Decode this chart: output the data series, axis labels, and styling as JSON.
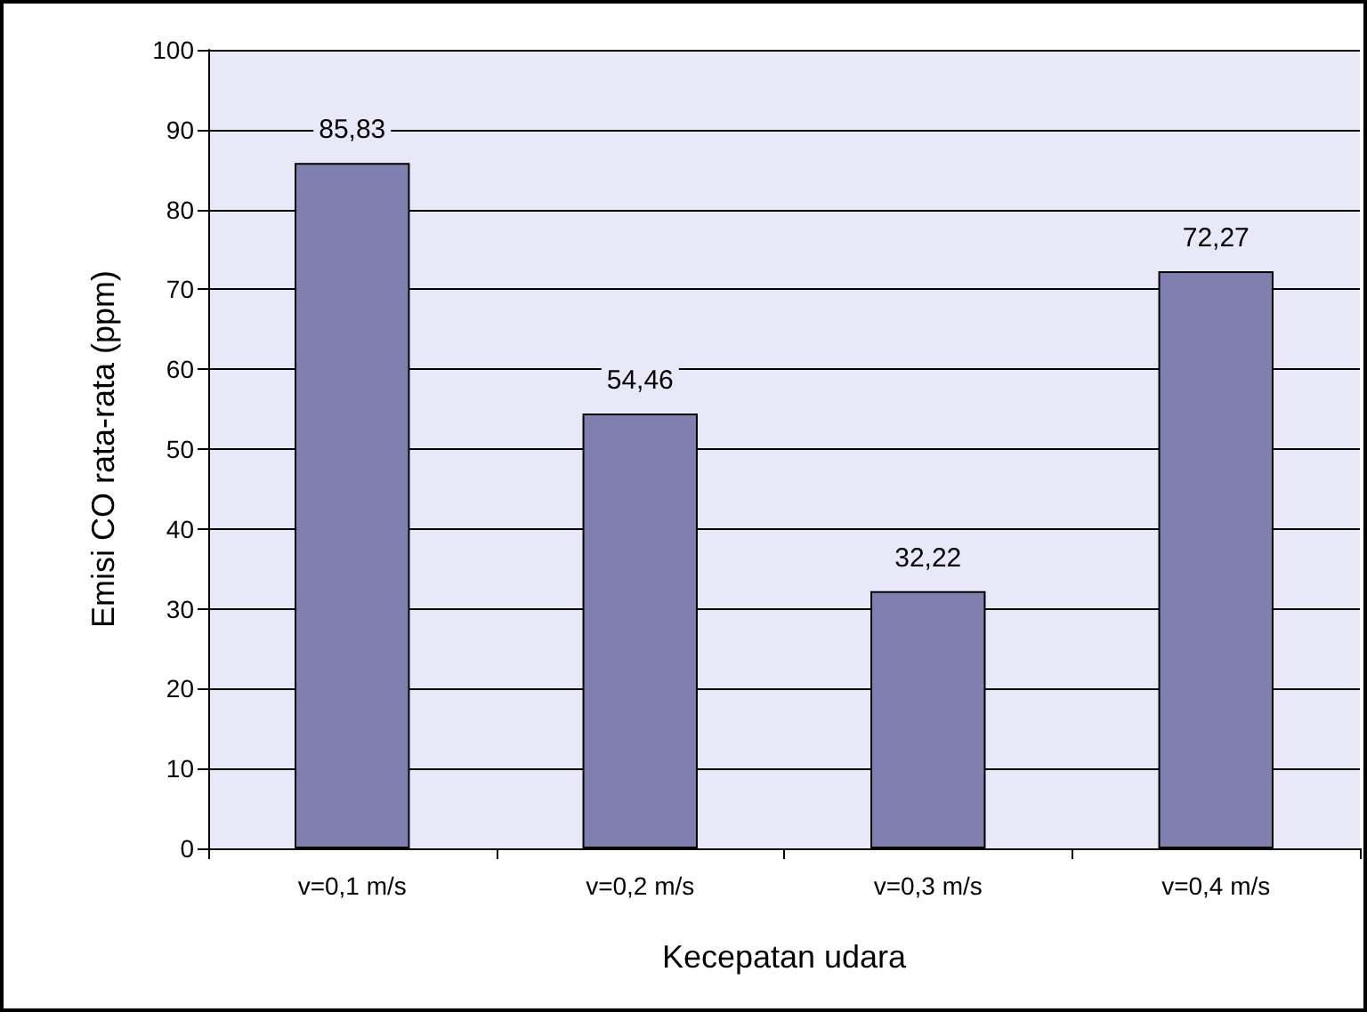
{
  "chart_data": {
    "type": "bar",
    "xlabel": "Kecepatan udara",
    "ylabel": "Emisi CO rata-rata (ppm)",
    "categories": [
      "v=0,1 m/s",
      "v=0,2 m/s",
      "v=0,3 m/s",
      "v=0,4 m/s"
    ],
    "values": [
      85.83,
      54.46,
      32.22,
      72.27
    ],
    "value_labels": [
      "85,83",
      "54,46",
      "32,22",
      "72,27"
    ],
    "color": "#8080b0",
    "ylim": [
      0,
      100
    ],
    "yticks": [
      0,
      10,
      20,
      30,
      40,
      50,
      60,
      70,
      80,
      90,
      100
    ],
    "grid": "y"
  }
}
